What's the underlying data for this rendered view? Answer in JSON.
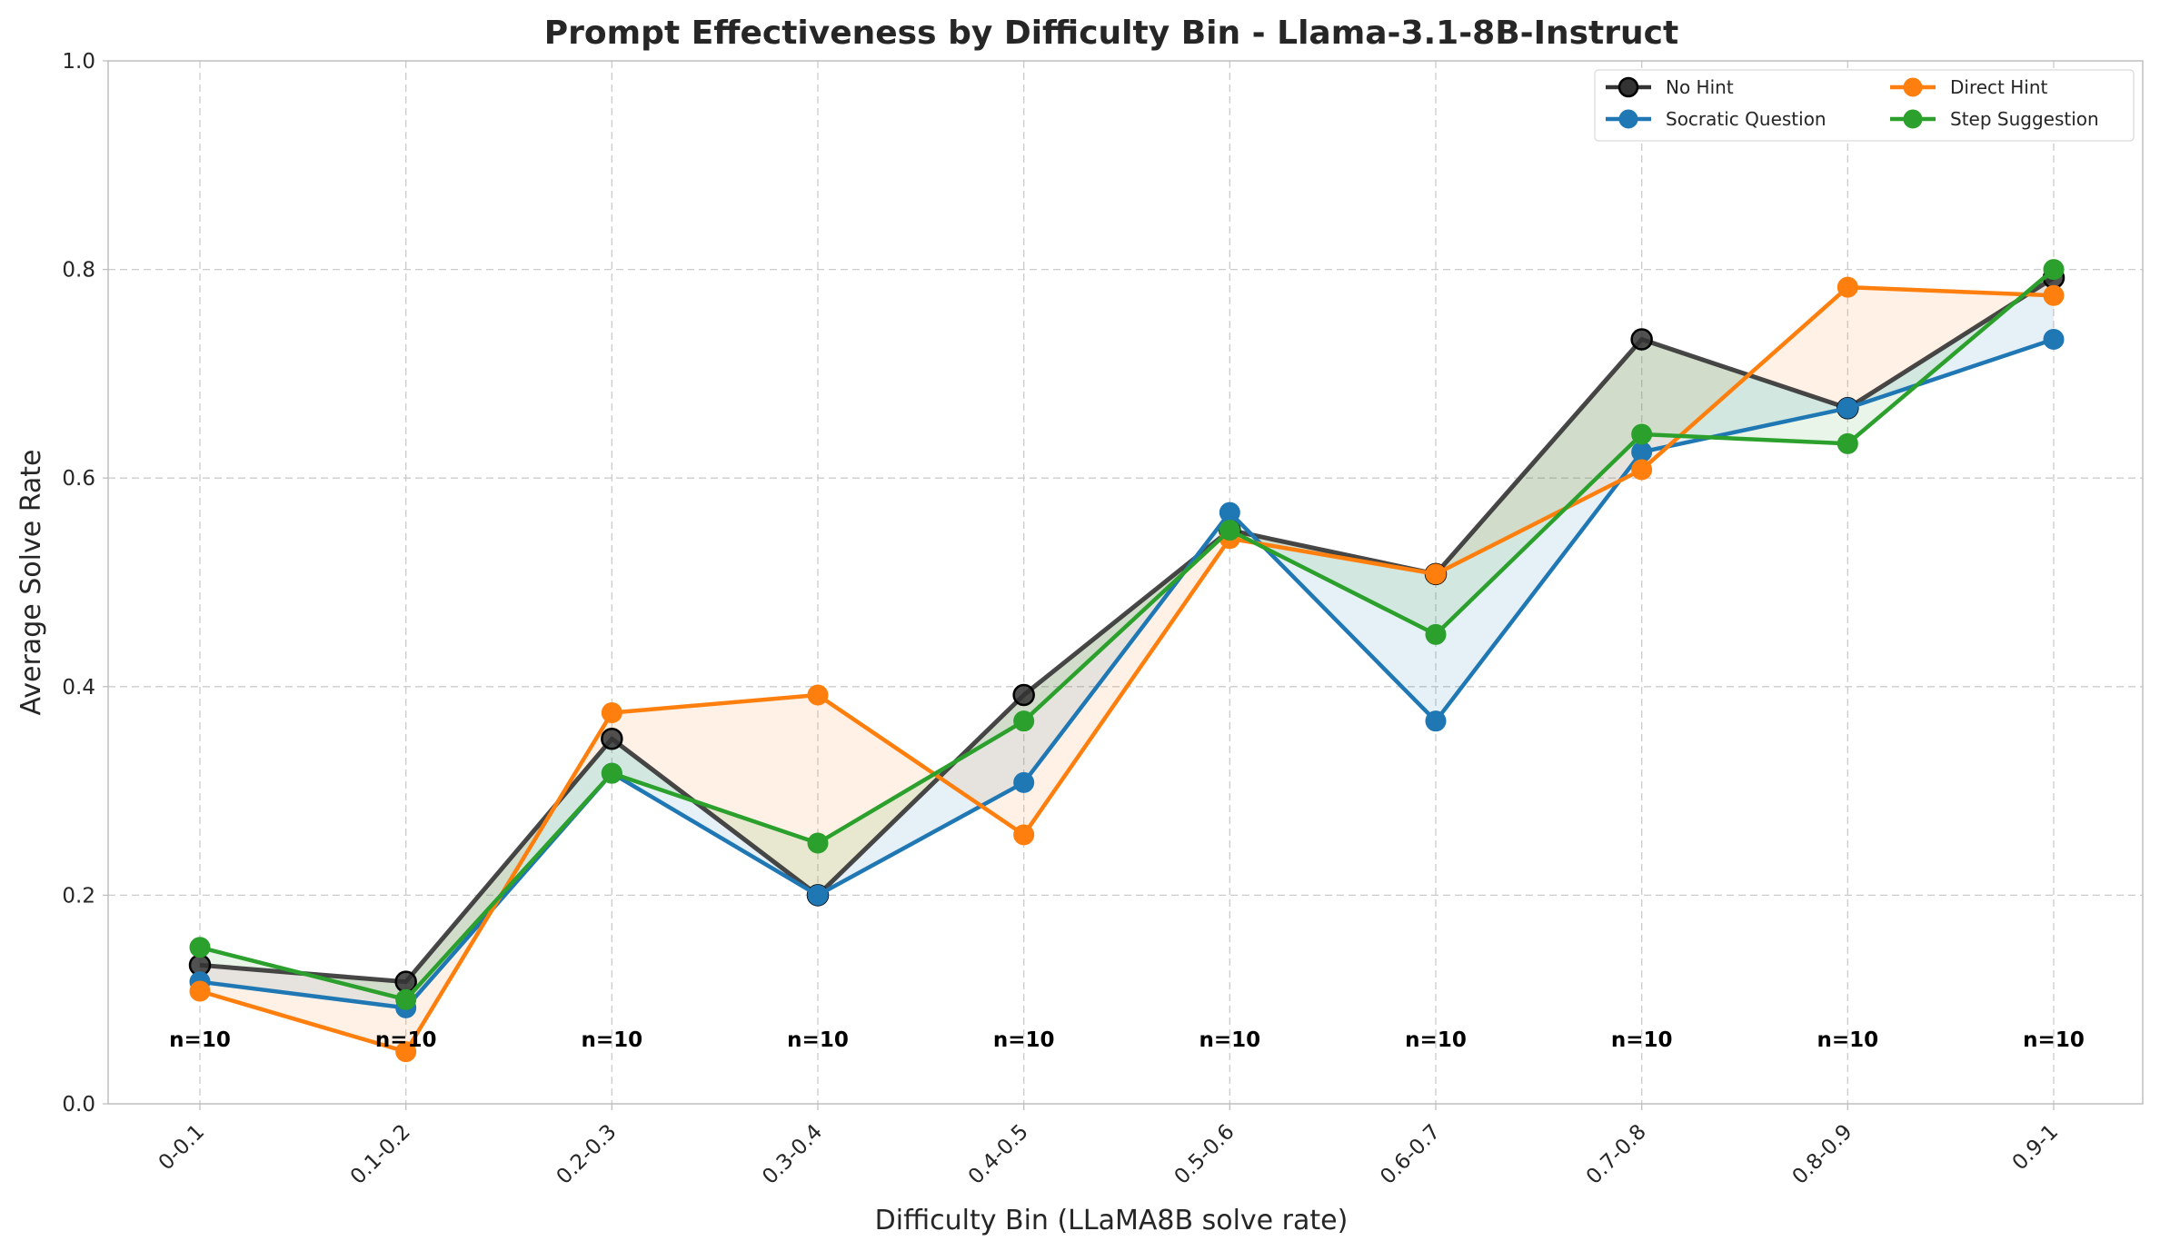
{
  "chart_data": {
    "type": "line",
    "title": "Prompt Effectiveness by Difficulty Bin - Llama-3.1-8B-Instruct",
    "xlabel": "Difficulty Bin (LLaMA8B solve rate)",
    "ylabel": "Average Solve Rate",
    "ylim": [
      0,
      1.0
    ],
    "yticks": [
      "0.0",
      "0.2",
      "0.4",
      "0.6",
      "0.8",
      "1.0"
    ],
    "grid": true,
    "legend_position": "top-right",
    "categories": [
      "0-0.1",
      "0.1-0.2",
      "0.2-0.3",
      "0.3-0.4",
      "0.4-0.5",
      "0.5-0.6",
      "0.6-0.7",
      "0.7-0.8",
      "0.8-0.9",
      "0.9-1"
    ],
    "sample_counts": [
      "n=10",
      "n=10",
      "n=10",
      "n=10",
      "n=10",
      "n=10",
      "n=10",
      "n=10",
      "n=10",
      "n=10"
    ],
    "series": [
      {
        "name": "No Hint",
        "color": "#333333",
        "values": [
          0.133,
          0.117,
          0.35,
          0.2,
          0.392,
          0.55,
          0.508,
          0.733,
          0.667,
          0.792
        ]
      },
      {
        "name": "Direct Hint",
        "color": "#ff7f0e",
        "values": [
          0.108,
          0.05,
          0.375,
          0.392,
          0.258,
          0.542,
          0.508,
          0.608,
          0.783,
          0.775
        ]
      },
      {
        "name": "Socratic Question",
        "color": "#1f77b4",
        "values": [
          0.117,
          0.092,
          0.317,
          0.2,
          0.308,
          0.567,
          0.367,
          0.625,
          0.667,
          0.733
        ]
      },
      {
        "name": "Step Suggestion",
        "color": "#2ca02c",
        "values": [
          0.15,
          0.1,
          0.317,
          0.25,
          0.367,
          0.55,
          0.45,
          0.642,
          0.633,
          0.8
        ]
      }
    ]
  }
}
